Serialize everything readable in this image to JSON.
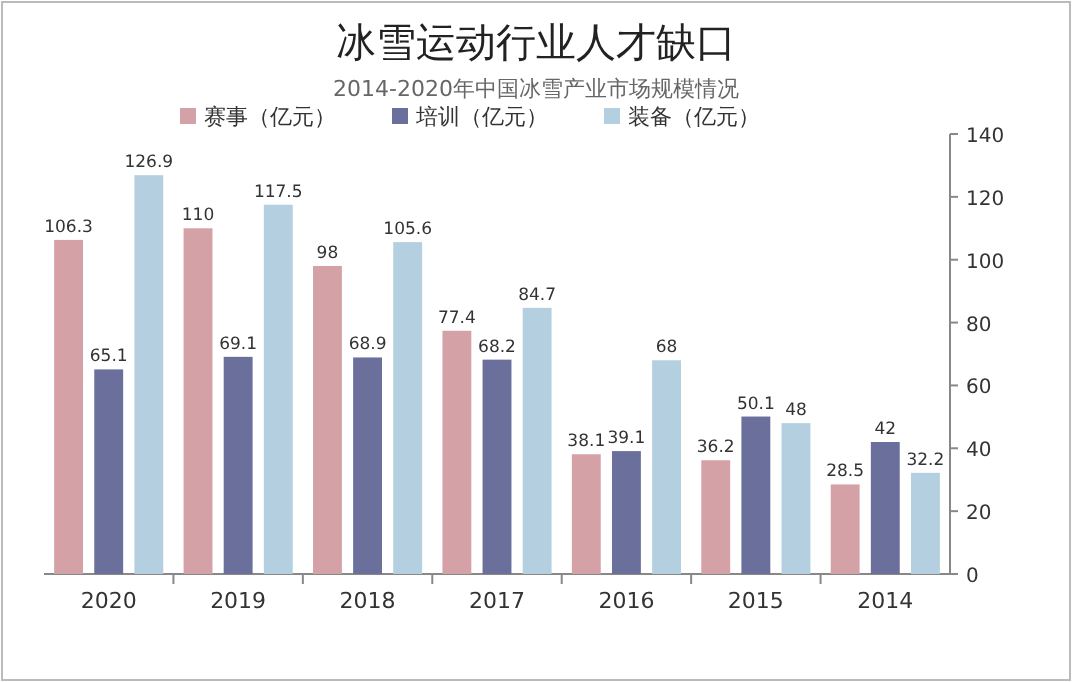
{
  "chart_data": {
    "type": "bar",
    "title": "冰雪运动行业人才缺口",
    "subtitle": "2014-2020年中国冰雪产业市场规模情况",
    "categories": [
      "2020",
      "2019",
      "2018",
      "2017",
      "2016",
      "2015",
      "2014"
    ],
    "series": [
      {
        "name": "赛事（亿元）",
        "color": "#d4a2a6",
        "values": [
          106.3,
          110,
          98,
          77.4,
          38.1,
          36.2,
          28.5
        ]
      },
      {
        "name": "培训（亿元）",
        "color": "#6a6f9b",
        "values": [
          65.1,
          69.1,
          68.9,
          68.2,
          39.1,
          50.1,
          42
        ]
      },
      {
        "name": "装备（亿元）",
        "color": "#b4cfe0",
        "values": [
          126.9,
          117.5,
          105.6,
          84.7,
          68,
          48,
          32.2
        ]
      }
    ],
    "ylim": [
      0,
      140
    ],
    "yticks": [
      0,
      20,
      40,
      60,
      80,
      100,
      120,
      140
    ],
    "data_labels": true,
    "legend": "top",
    "grid": false
  }
}
